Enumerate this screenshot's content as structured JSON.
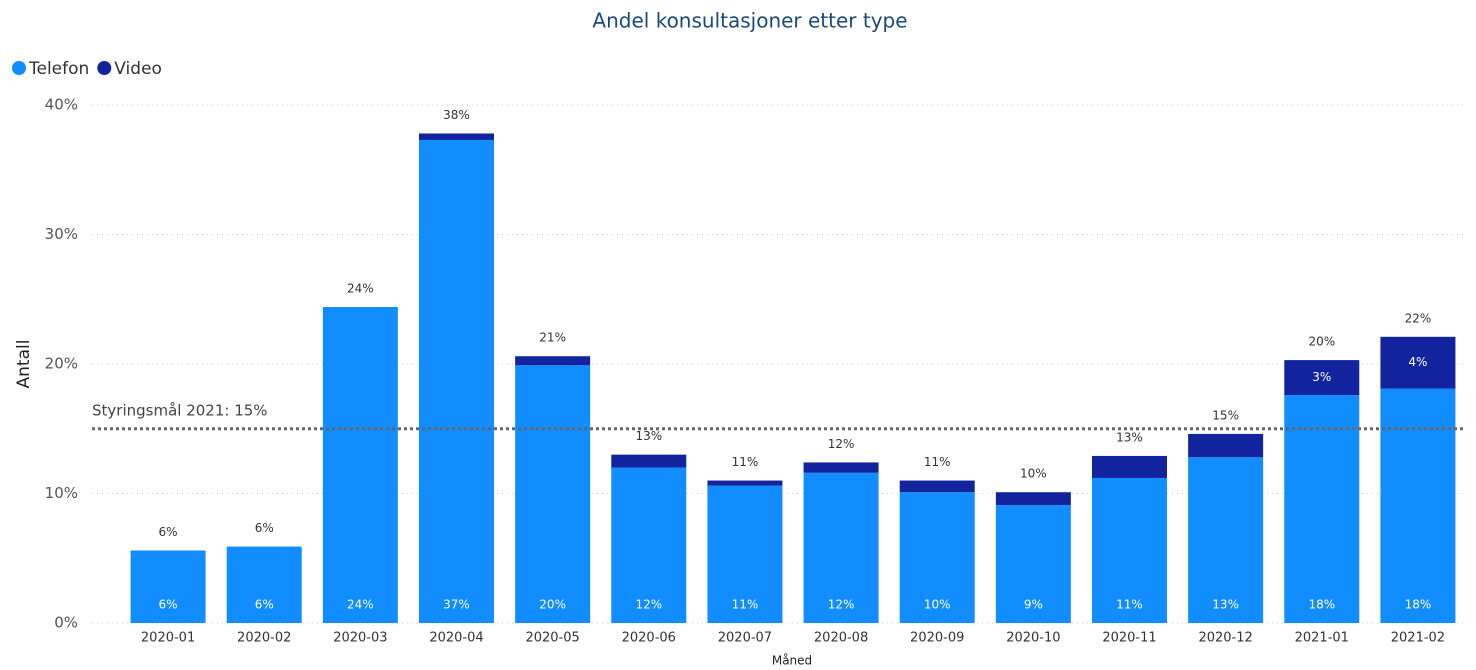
{
  "chart_data": {
    "type": "stacked_bar",
    "title": "Andel konsultasjoner etter type",
    "y_label": "Antall",
    "x_label": "Måned",
    "categories": [
      "2020-01",
      "2020-02",
      "2020-03",
      "2020-04",
      "2020-05",
      "2020-06",
      "2020-07",
      "2020-08",
      "2020-09",
      "2020-10",
      "2020-11",
      "2020-12",
      "2021-01",
      "2021-02"
    ],
    "series": [
      {
        "name": "Telefon",
        "color": "#118dff",
        "values": [
          5.6,
          5.9,
          24.4,
          37.3,
          19.9,
          12.0,
          10.6,
          11.6,
          10.1,
          9.1,
          11.2,
          12.8,
          17.6,
          18.1
        ],
        "value_labels": [
          "6%",
          "6%",
          "24%",
          "37%",
          "20%",
          "12%",
          "11%",
          "12%",
          "10%",
          "9%",
          "11%",
          "13%",
          "18%",
          "18%"
        ]
      },
      {
        "name": "Video",
        "color": "#12239e",
        "values": [
          0,
          0,
          0,
          0.5,
          0.7,
          1.0,
          0.4,
          0.8,
          0.9,
          1.0,
          1.7,
          1.8,
          2.7,
          4.0
        ],
        "value_labels": [
          null,
          null,
          null,
          null,
          null,
          null,
          null,
          null,
          null,
          null,
          null,
          null,
          "3%",
          "4%"
        ]
      }
    ],
    "total_labels": [
      "6%",
      "6%",
      "24%",
      "38%",
      "21%",
      "13%",
      "11%",
      "12%",
      "11%",
      "10%",
      "13%",
      "15%",
      "20%",
      "22%"
    ],
    "ylim": [
      0,
      40
    ],
    "yticks": [
      {
        "value": 0,
        "label": "0%"
      },
      {
        "value": 10,
        "label": "10%"
      },
      {
        "value": 20,
        "label": "20%"
      },
      {
        "value": 30,
        "label": "30%"
      },
      {
        "value": 40,
        "label": "40%"
      }
    ],
    "grid": true,
    "legend": "top-left",
    "reference_line": {
      "value": 15,
      "label": "Styringsmål 2021: 15%"
    }
  }
}
